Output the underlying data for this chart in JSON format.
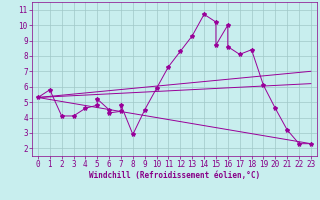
{
  "xlabel": "Windchill (Refroidissement éolien,°C)",
  "background_color": "#c8eeee",
  "grid_color": "#a0c8c8",
  "line_color": "#990099",
  "xlim": [
    -0.5,
    23.5
  ],
  "ylim": [
    1.5,
    11.5
  ],
  "xticks": [
    0,
    1,
    2,
    3,
    4,
    5,
    6,
    7,
    8,
    9,
    10,
    11,
    12,
    13,
    14,
    15,
    16,
    17,
    18,
    19,
    20,
    21,
    22,
    23
  ],
  "yticks": [
    2,
    3,
    4,
    5,
    6,
    7,
    8,
    9,
    10,
    11
  ],
  "series1_x": [
    0,
    1,
    2,
    3,
    4,
    5,
    5,
    6,
    6,
    7,
    7,
    8,
    9,
    10,
    11,
    12,
    13,
    14,
    15,
    15,
    16,
    16,
    17,
    18,
    19,
    20,
    21,
    22,
    23
  ],
  "series1_y": [
    5.3,
    5.8,
    4.1,
    4.1,
    4.6,
    4.8,
    5.2,
    4.5,
    4.3,
    4.4,
    4.8,
    2.9,
    4.5,
    5.9,
    7.3,
    8.3,
    9.3,
    10.7,
    10.2,
    8.7,
    10.0,
    8.6,
    8.1,
    8.4,
    6.1,
    4.6,
    3.2,
    2.3,
    2.3
  ],
  "line1_x": [
    0,
    23
  ],
  "line1_y": [
    5.3,
    7.0
  ],
  "line2_x": [
    0,
    23
  ],
  "line2_y": [
    5.3,
    6.2
  ],
  "line3_x": [
    0,
    23
  ],
  "line3_y": [
    5.3,
    2.3
  ],
  "tick_fontsize": 5.5,
  "xlabel_fontsize": 5.5,
  "spine_color": "#880088",
  "tick_color": "#880088"
}
